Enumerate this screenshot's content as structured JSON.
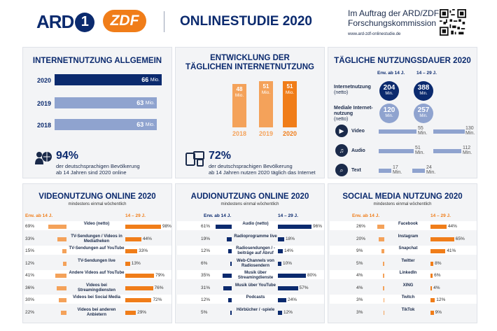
{
  "header": {
    "brand_ard": "ARD",
    "brand_ard_num": "1",
    "brand_zdf": "ZDF",
    "title": "ONLINESTUDIE 2020",
    "commission_line1": "Im Auftrag der ARD/ZDF-",
    "commission_line2": "Forschungskommission",
    "url": "www.ard-zdf-onlinestudie.de"
  },
  "internet": {
    "title": "INTERNETNUTZUNG ALLGEMEIN",
    "rows": [
      {
        "year": "2020",
        "value": "66",
        "unit": "Mio."
      },
      {
        "year": "2019",
        "value": "63",
        "unit": "Mio."
      },
      {
        "year": "2018",
        "value": "63",
        "unit": "Mio."
      }
    ],
    "stat": "94%",
    "desc1": "der deutschsprachigen Bevölkerung",
    "desc2": "ab 14 Jahren sind 2020 online"
  },
  "daily": {
    "title1": "ENTWICKLUNG DER",
    "title2": "TÄGLICHEN INTERNETNUTZUNG",
    "bars": [
      {
        "year": "2018",
        "value": "48",
        "unit": "Mio."
      },
      {
        "year": "2019",
        "value": "51",
        "unit": "Mio."
      },
      {
        "year": "2020",
        "value": "51",
        "unit": "Mio."
      }
    ],
    "stat": "72%",
    "desc1": "der deutschsprachigen Bevölkerung",
    "desc2": "ab 14 Jahren nutzen 2020 täglich das Internet"
  },
  "duration": {
    "title": "TÄGLICHE NUTZUNGSDAUER 2020",
    "col1": "Erw. ab 14 J.",
    "col2": "14 – 29 J.",
    "internet_label1": "Internetnutzung",
    "internet_label2": "(netto)",
    "internet_a": "204",
    "internet_b": "388",
    "media_label1": "Mediale Internet-",
    "media_label2": "nutzung",
    "media_label3": "(netto)",
    "media_a": "120",
    "media_b": "257",
    "unit": "Min.",
    "items": [
      {
        "label": "Video",
        "a": "55",
        "b": "130"
      },
      {
        "label": "Audio",
        "a": "51",
        "b": "112"
      },
      {
        "label": "Text",
        "a": "17",
        "b": "24"
      }
    ]
  },
  "video": {
    "title": "VIDEONUTZUNG ONLINE 2020",
    "sub": "mindestens einmal wöchentlich",
    "col1": "Erw. ab 14 J.",
    "col2": "14 – 29 J.",
    "rows": [
      {
        "label": "Video (netto)",
        "a": "69%",
        "b": "98%"
      },
      {
        "label": "TV-Sendungen / Videos in Mediatheken",
        "a": "33%",
        "b": "44%"
      },
      {
        "label": "TV-Sendungen auf YouTube",
        "a": "15%",
        "b": "33%"
      },
      {
        "label": "TV-Sendungen live",
        "a": "12%",
        "b": "13%"
      },
      {
        "label": "Andere Videos auf YouTube",
        "a": "41%",
        "b": "79%"
      },
      {
        "label": "Videos bei Streamingdiensten",
        "a": "36%",
        "b": "76%"
      },
      {
        "label": "Videos bei Social Media",
        "a": "30%",
        "b": "72%"
      },
      {
        "label": "Videos bei anderen Anbietern",
        "a": "22%",
        "b": "29%"
      }
    ]
  },
  "audio": {
    "title": "AUDIONUTZUNG ONLINE 2020",
    "sub": "mindestens einmal wöchentlich",
    "col1": "Erw. ab 14 J.",
    "col2": "14 – 29 J.",
    "rows": [
      {
        "label": "Audio (netto)",
        "a": "61%",
        "b": "96%"
      },
      {
        "label": "Radioprogramme live",
        "a": "19%",
        "b": "18%"
      },
      {
        "label": "Radiosendungen / -beiträge auf Abruf",
        "a": "12%",
        "b": "14%"
      },
      {
        "label": "Web-Channels von Radiosendern",
        "a": "6%",
        "b": "10%"
      },
      {
        "label": "Musik über Streamingdienste",
        "a": "35%",
        "b": "80%"
      },
      {
        "label": "Musik über YouTube",
        "a": "31%",
        "b": "57%"
      },
      {
        "label": "Podcasts",
        "a": "12%",
        "b": "24%"
      },
      {
        "label": "Hörbücher / -spiele",
        "a": "5%",
        "b": "12%"
      }
    ]
  },
  "social": {
    "title": "SOCIAL MEDIA NUTZUNG 2020",
    "sub": "mindestens einmal wöchentlich",
    "col1": "Erw. ab 14 J.",
    "col2": "14 – 29 J.",
    "rows": [
      {
        "label": "Facebook",
        "a": "26%",
        "b": "44%"
      },
      {
        "label": "Instagram",
        "a": "20%",
        "b": "65%"
      },
      {
        "label": "Snapchat",
        "a": "9%",
        "b": "41%"
      },
      {
        "label": "Twitter",
        "a": "5%",
        "b": "8%"
      },
      {
        "label": "LinkedIn",
        "a": "4%",
        "b": "6%"
      },
      {
        "label": "XING",
        "a": "4%",
        "b": "4%"
      },
      {
        "label": "Twitch",
        "a": "3%",
        "b": "12%"
      },
      {
        "label": "TikTok",
        "a": "3%",
        "b": "9%"
      }
    ]
  },
  "colors": {
    "navy": "#0b2a6e",
    "orange": "#f07d19",
    "lightblue": "#8fa3cf",
    "peach": "#f4a25a"
  }
}
